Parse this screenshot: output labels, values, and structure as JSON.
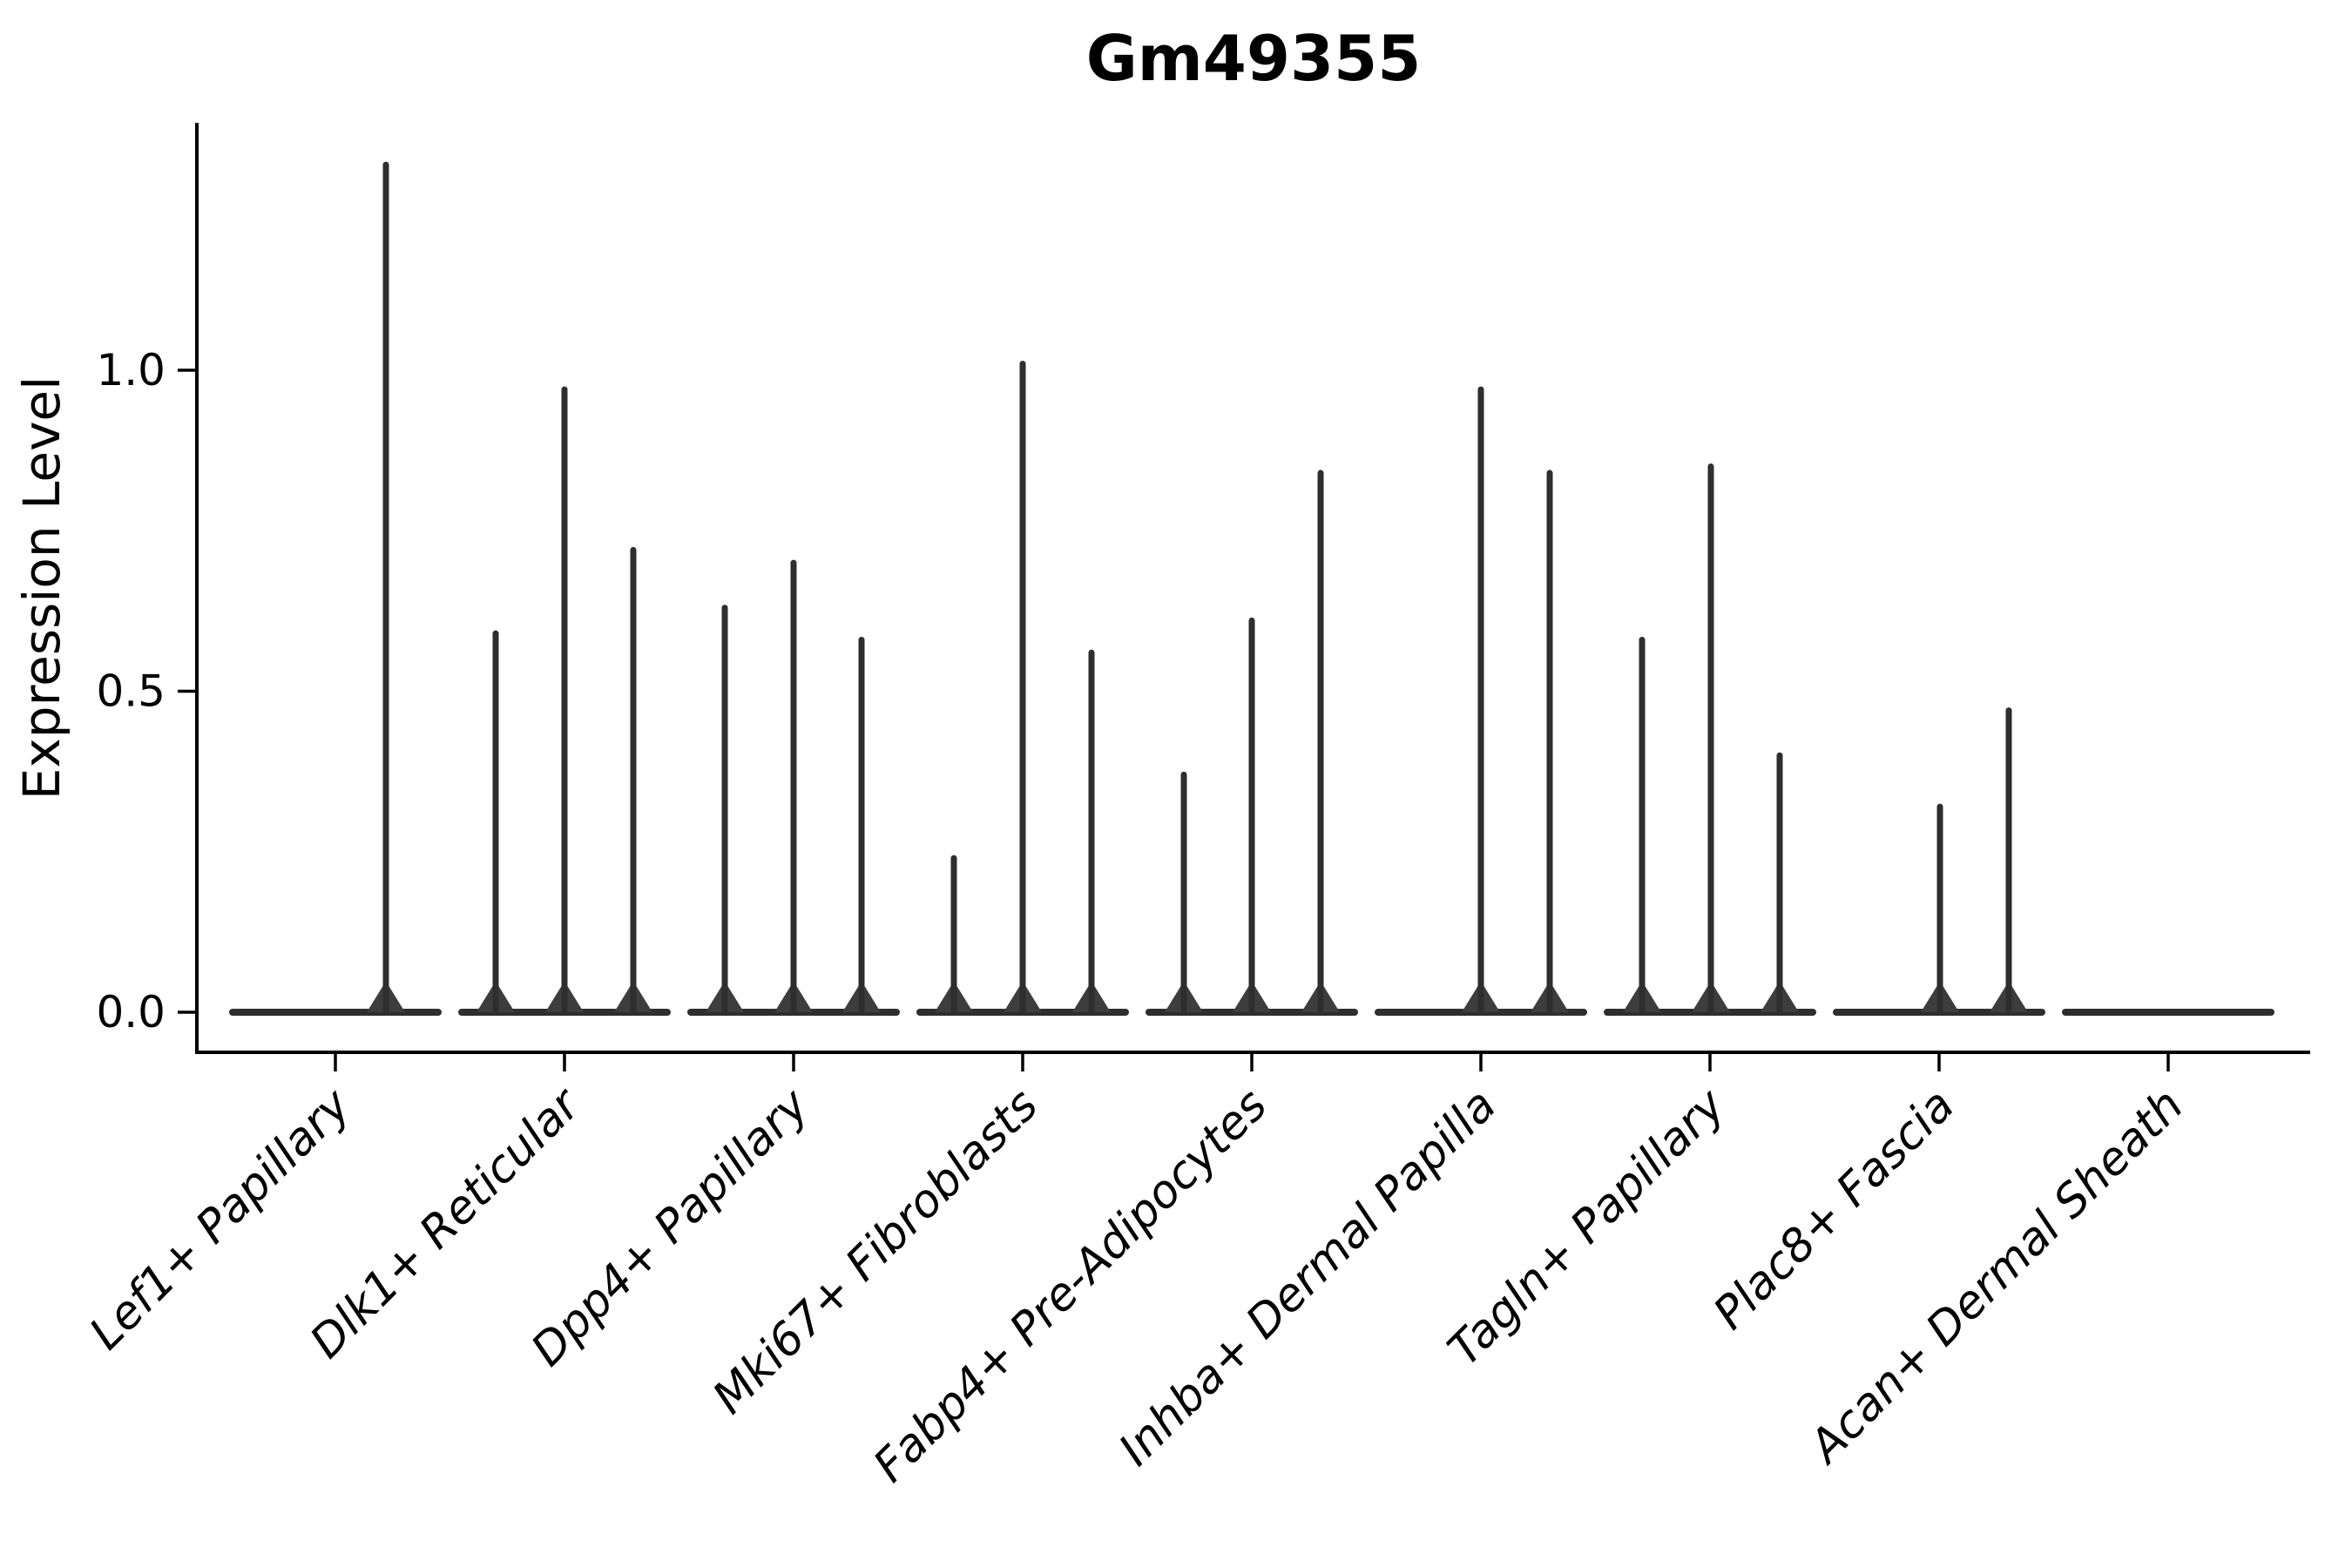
{
  "chart_data": {
    "type": "violin",
    "title": "Gm49355",
    "ylabel": "Expression Level",
    "xlabel": "",
    "grid": false,
    "legend": "none",
    "ylim": [
      -0.06,
      1.39
    ],
    "yticks": [
      "0.0",
      "0.5",
      "1.0"
    ],
    "ytick_values": [
      0.0,
      0.5,
      1.0
    ],
    "categories": [
      "Lef1+ Papillary",
      "Dlk1+ Reticular",
      "Dpp4+ Papillary",
      "Mki67+ Fibroblasts",
      "Fabp4+ Pre-Adipocytes",
      "Inhba+ Dermal Papilla",
      "Tagln+ Papillary",
      "Plac8+ Fascia",
      "Acan+ Dermal Sheath"
    ],
    "description": "Violin plot; each category shows a flat density base at expression 0 with thin spikes rising to the maximum expression of each sub-violin.",
    "series": [
      {
        "category": "Lef1+ Papillary",
        "spikes": [
          {
            "x_offset": 58,
            "max": 1.32
          }
        ]
      },
      {
        "category": "Dlk1+ Reticular",
        "spikes": [
          {
            "x_offset": -79,
            "max": 0.59
          },
          {
            "x_offset": 0,
            "max": 0.97
          },
          {
            "x_offset": 79,
            "max": 0.72
          }
        ]
      },
      {
        "category": "Dpp4+ Papillary",
        "spikes": [
          {
            "x_offset": -79,
            "max": 0.63
          },
          {
            "x_offset": 0,
            "max": 0.7
          },
          {
            "x_offset": 78,
            "max": 0.58
          }
        ]
      },
      {
        "category": "Mki67+ Fibroblasts",
        "spikes": [
          {
            "x_offset": -79,
            "max": 0.24
          },
          {
            "x_offset": 0,
            "max": 1.01
          },
          {
            "x_offset": 79,
            "max": 0.56
          }
        ]
      },
      {
        "category": "Fabp4+ Pre-Adipocytes",
        "spikes": [
          {
            "x_offset": -78,
            "max": 0.37
          },
          {
            "x_offset": 0,
            "max": 0.61
          },
          {
            "x_offset": 79,
            "max": 0.84
          }
        ]
      },
      {
        "category": "Inhba+ Dermal Papilla",
        "spikes": [
          {
            "x_offset": 0,
            "max": 0.97
          },
          {
            "x_offset": 79,
            "max": 0.84
          }
        ]
      },
      {
        "category": "Tagln+ Papillary",
        "spikes": [
          {
            "x_offset": -78,
            "max": 0.58
          },
          {
            "x_offset": 1,
            "max": 0.85
          },
          {
            "x_offset": 80,
            "max": 0.4
          }
        ]
      },
      {
        "category": "Plac8+ Fascia",
        "spikes": [
          {
            "x_offset": 1,
            "max": 0.32
          },
          {
            "x_offset": 80,
            "max": 0.47
          }
        ]
      },
      {
        "category": "Acan+ Dermal Sheath",
        "spikes": []
      }
    ],
    "colors": {
      "violin": "#2e2e2e",
      "violin_taper": "#3d3d3d",
      "spine": "#000000",
      "text": "#000000",
      "background": "#ffffff"
    }
  }
}
